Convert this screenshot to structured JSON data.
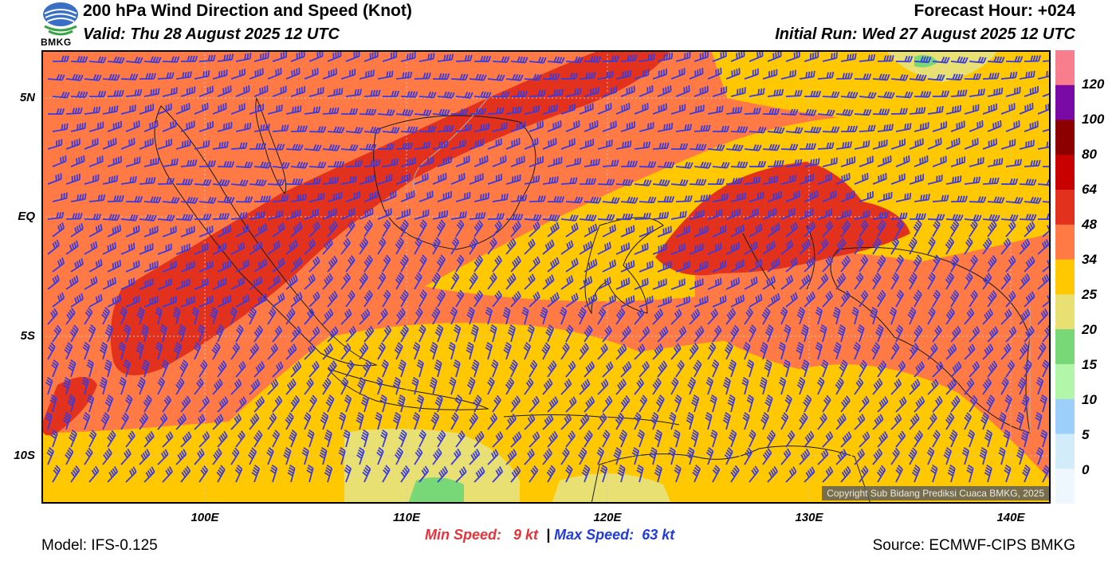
{
  "header": {
    "title": "200 hPa Wind Direction and Speed (Knot)",
    "valid": "Valid: Thu 28 August 2025 12 UTC",
    "forecast_hour": "Forecast Hour: +024",
    "initial_run": "Initial Run: Wed 27 August 2025 12 UTC",
    "logo_text": "BMKG"
  },
  "axes": {
    "lat_labels": [
      "5N",
      "EQ",
      "5S",
      "10S"
    ],
    "lon_labels": [
      "100E",
      "110E",
      "120E",
      "130E",
      "140E"
    ]
  },
  "colorbar": {
    "labels": [
      "120",
      "100",
      "80",
      "64",
      "48",
      "34",
      "25",
      "20",
      "15",
      "10",
      "5",
      "0"
    ],
    "colors": [
      "#f87e8e",
      "#7a0aa6",
      "#8c0000",
      "#c80000",
      "#e2321e",
      "#ff7a45",
      "#ffc800",
      "#e8e072",
      "#78d878",
      "#b2f6aa",
      "#9cd0fa",
      "#d2ecfa",
      "#eef6fe"
    ]
  },
  "stats": {
    "min_label": "Min Speed:",
    "min_value": "9 kt",
    "separator": "|",
    "max_label": "Max Speed:",
    "max_value": "63 kt"
  },
  "footer": {
    "model": "Model: IFS-0.125",
    "source": "Source: ECMWF-CIPS BMKG",
    "copyright": "Copyright Sub Bidang Prediksi Cuaca BMKG, 2025"
  },
  "map_colors": {
    "yellow": "#ffc800",
    "orange": "#ff7a45",
    "red": "#e2321e",
    "pale": "#e8e072",
    "green": "#78d878",
    "barb": "#3b3bdc",
    "coast": "#1a1a1a",
    "border": "#b0b0b0"
  }
}
